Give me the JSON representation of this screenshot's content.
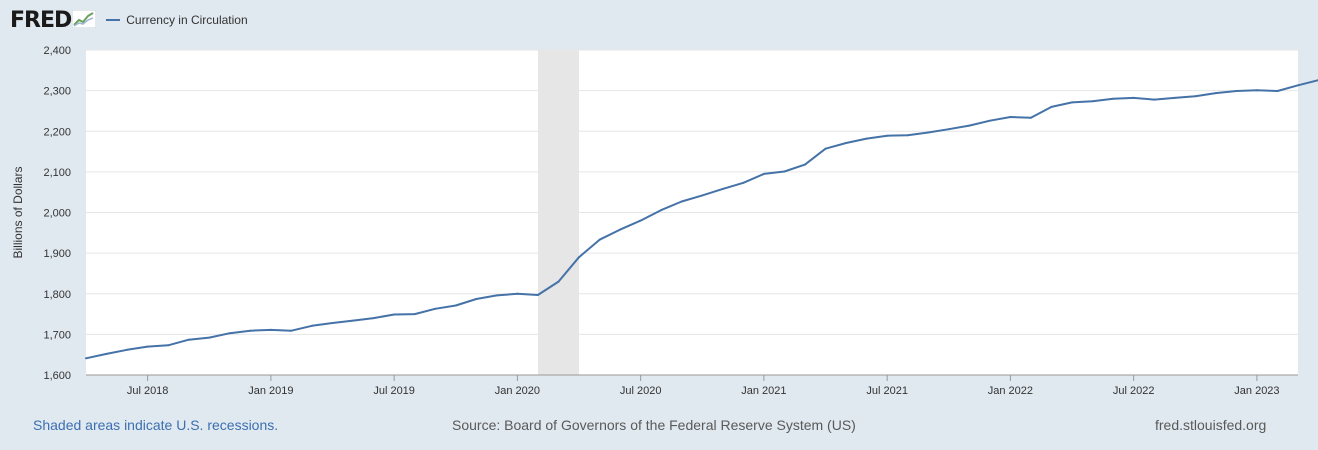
{
  "brand": {
    "name": "FRED",
    "icon": "chart-line-icon"
  },
  "legend": {
    "label": "Currency in Circulation",
    "color": "#4572a7"
  },
  "footer": {
    "recession_note": "Shaded areas indicate U.S. recessions.",
    "source": "Source: Board of Governors of the Federal Reserve System (US)",
    "site": "fred.stlouisfed.org"
  },
  "colors": {
    "background": "#e1e9f0",
    "plot": "#ffffff",
    "line": "#4572a7",
    "recession": "#e6e6e6",
    "grid": "#e6e6e6"
  },
  "chart_data": {
    "type": "line",
    "title": "Currency in Circulation",
    "xlabel": "",
    "ylabel": "Billions of Dollars",
    "ylim": [
      1600,
      2400
    ],
    "yticks": [
      1600,
      1700,
      1800,
      1900,
      2000,
      2100,
      2200,
      2300,
      2400
    ],
    "ytick_labels": [
      "1,600",
      "1,700",
      "1,800",
      "1,900",
      "2,000",
      "2,100",
      "2,200",
      "2,300",
      "2,400"
    ],
    "xlim": [
      0,
      59
    ],
    "x_start": "2018-04",
    "xticks": [
      {
        "pos": 3,
        "label": "Jul 2018"
      },
      {
        "pos": 9,
        "label": "Jan 2019"
      },
      {
        "pos": 15,
        "label": "Jul 2019"
      },
      {
        "pos": 21,
        "label": "Jan 2020"
      },
      {
        "pos": 27,
        "label": "Jul 2020"
      },
      {
        "pos": 33,
        "label": "Jan 2021"
      },
      {
        "pos": 39,
        "label": "Jul 2021"
      },
      {
        "pos": 45,
        "label": "Jan 2022"
      },
      {
        "pos": 51,
        "label": "Jul 2022"
      },
      {
        "pos": 57,
        "label": "Jan 2023"
      }
    ],
    "recessions": [
      {
        "start": 22,
        "end": 24
      }
    ],
    "grid": true,
    "series": [
      {
        "name": "Currency in Circulation",
        "values": [
          1641,
          1652,
          1662,
          1670,
          1673,
          1687,
          1692,
          1703,
          1709,
          1711,
          1709,
          1721,
          1728,
          1734,
          1740,
          1749,
          1750,
          1763,
          1771,
          1787,
          1796,
          1800,
          1797,
          1830,
          1890,
          1933,
          1958,
          1980,
          2006,
          2027,
          2042,
          2058,
          2073,
          2095,
          2101,
          2118,
          2157,
          2171,
          2182,
          2189,
          2190,
          2197,
          2205,
          2214,
          2226,
          2235,
          2233,
          2260,
          2271,
          2274,
          2280,
          2282,
          2278,
          2282,
          2286,
          2294,
          2299,
          2301,
          2299,
          2313,
          2326
        ]
      }
    ]
  }
}
